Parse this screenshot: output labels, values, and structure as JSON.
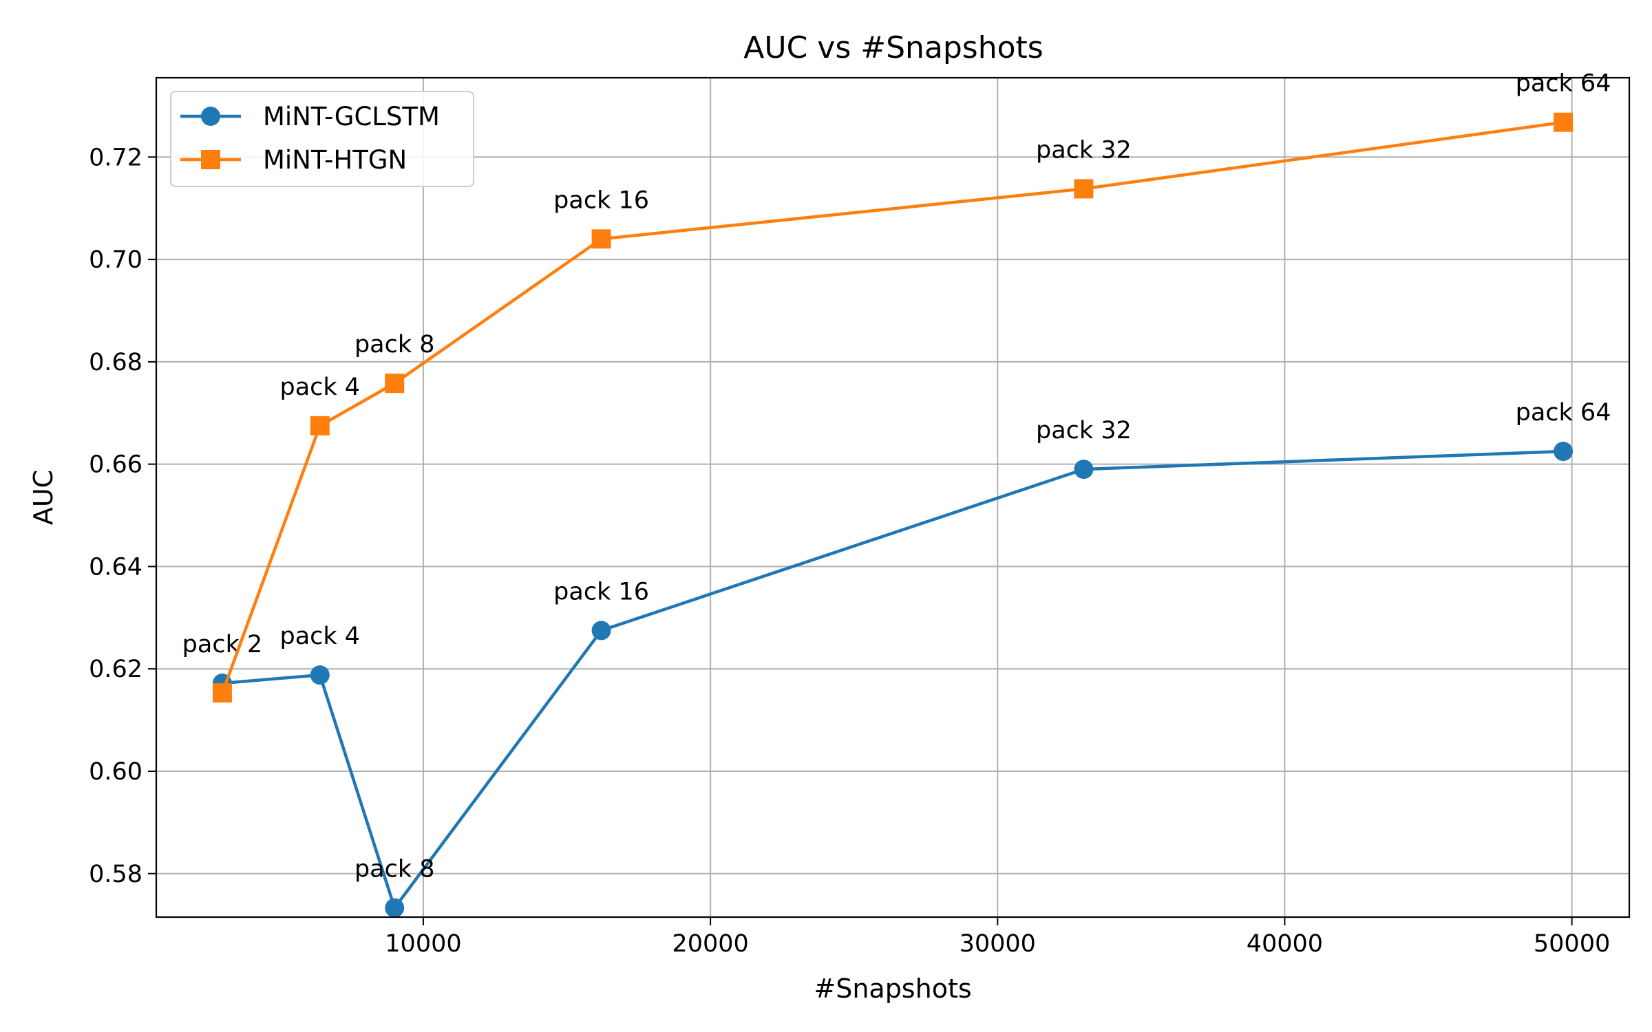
{
  "chart_data": {
    "type": "line",
    "title": "AUC vs #Snapshots",
    "xlabel": "#Snapshots",
    "ylabel": "AUC",
    "xlim": [
      700,
      52000
    ],
    "ylim": [
      0.5715,
      0.7355
    ],
    "xticks": [
      10000,
      20000,
      30000,
      40000,
      50000
    ],
    "xtick_labels": [
      "10000",
      "20000",
      "30000",
      "40000",
      "50000"
    ],
    "yticks": [
      0.58,
      0.6,
      0.62,
      0.64,
      0.66,
      0.68,
      0.7,
      0.72
    ],
    "ytick_labels": [
      "0.58",
      "0.60",
      "0.62",
      "0.64",
      "0.66",
      "0.68",
      "0.70",
      "0.72"
    ],
    "grid": true,
    "legend_position": "top-left",
    "series": [
      {
        "name": "MiNT-GCLSTM",
        "color": "#1f77b4",
        "marker": "circle",
        "points": [
          {
            "x": 3000,
            "y": 0.6172,
            "label": "pack 2"
          },
          {
            "x": 6400,
            "y": 0.6188,
            "label": "pack 4"
          },
          {
            "x": 9000,
            "y": 0.5733,
            "label": "pack 8"
          },
          {
            "x": 16200,
            "y": 0.6275,
            "label": "pack 16"
          },
          {
            "x": 33000,
            "y": 0.659,
            "label": "pack 32"
          },
          {
            "x": 49700,
            "y": 0.6625,
            "label": "pack 64"
          }
        ]
      },
      {
        "name": "MiNT-HTGN",
        "color": "#ff7f0e",
        "marker": "square",
        "points": [
          {
            "x": 3000,
            "y": 0.6153,
            "label": ""
          },
          {
            "x": 6400,
            "y": 0.6675,
            "label": "pack 4"
          },
          {
            "x": 9000,
            "y": 0.6758,
            "label": "pack 8"
          },
          {
            "x": 16200,
            "y": 0.704,
            "label": "pack 16"
          },
          {
            "x": 33000,
            "y": 0.7138,
            "label": "pack 32"
          },
          {
            "x": 49700,
            "y": 0.7268,
            "label": "pack 64"
          }
        ]
      }
    ]
  }
}
